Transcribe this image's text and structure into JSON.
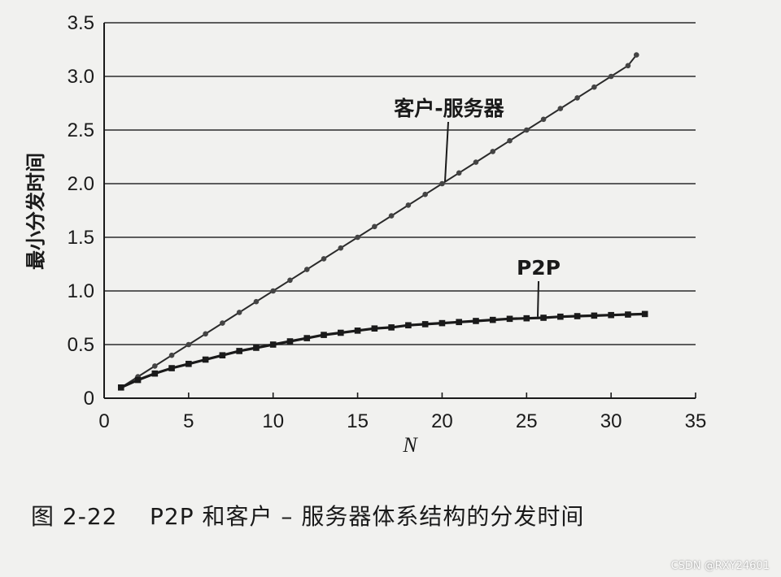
{
  "chart_data": {
    "type": "line",
    "xlabel": "N",
    "ylabel": "最小分发时间",
    "xlim": [
      0,
      35
    ],
    "ylim": [
      0,
      3.5
    ],
    "x_ticks": [
      "0",
      "5",
      "10",
      "15",
      "20",
      "25",
      "30",
      "35"
    ],
    "y_ticks": [
      "0",
      "0.5",
      "1.0",
      "1.5",
      "2.0",
      "2.5",
      "3.0",
      "3.5"
    ],
    "grid": "horizontal",
    "series": [
      {
        "name": "客户-服务器",
        "color": "#2a2a2a",
        "x": [
          1,
          2,
          3,
          4,
          5,
          6,
          7,
          8,
          9,
          10,
          11,
          12,
          13,
          14,
          15,
          16,
          17,
          18,
          19,
          20,
          21,
          22,
          23,
          24,
          25,
          26,
          27,
          28,
          29,
          30,
          31,
          31.5
        ],
        "y": [
          0.1,
          0.2,
          0.3,
          0.4,
          0.5,
          0.6,
          0.7,
          0.8,
          0.9,
          1.0,
          1.1,
          1.2,
          1.3,
          1.4,
          1.5,
          1.6,
          1.7,
          1.8,
          1.9,
          2.0,
          2.1,
          2.2,
          2.3,
          2.4,
          2.5,
          2.6,
          2.7,
          2.8,
          2.9,
          3.0,
          3.1,
          3.2
        ]
      },
      {
        "name": "P2P",
        "color": "#1a1a1a",
        "x": [
          1,
          2,
          3,
          4,
          5,
          6,
          7,
          8,
          9,
          10,
          11,
          12,
          13,
          14,
          15,
          16,
          17,
          18,
          19,
          20,
          21,
          22,
          23,
          24,
          25,
          26,
          27,
          28,
          29,
          30,
          31,
          32
        ],
        "y": [
          0.1,
          0.17,
          0.23,
          0.28,
          0.32,
          0.36,
          0.4,
          0.44,
          0.47,
          0.5,
          0.53,
          0.56,
          0.59,
          0.61,
          0.63,
          0.65,
          0.66,
          0.68,
          0.69,
          0.7,
          0.71,
          0.72,
          0.73,
          0.74,
          0.745,
          0.75,
          0.76,
          0.765,
          0.77,
          0.775,
          0.78,
          0.785
        ]
      }
    ]
  },
  "caption": "图 2-22    P2P 和客户 – 服务器体系结构的分发时间",
  "watermark": "CSDN @RXY24601"
}
